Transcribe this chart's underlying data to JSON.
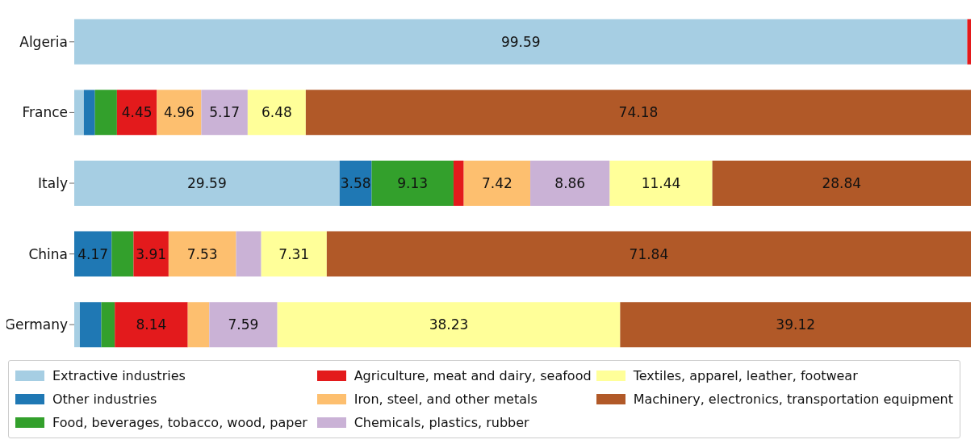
{
  "chart_data": {
    "type": "bar",
    "orientation": "horizontal",
    "stacked": true,
    "categories": [
      "Algeria",
      "France",
      "Italy",
      "China",
      "Germany"
    ],
    "xlim": [
      0,
      100
    ],
    "tick_labels": "y",
    "grid": false,
    "legend": "bottom",
    "series": [
      {
        "name": "Extractive industries",
        "color": "#a6cee3",
        "values": [
          99.59,
          1.07,
          29.59,
          0,
          0.62
        ],
        "value_labels": [
          "99.59",
          null,
          "29.59",
          null,
          null
        ]
      },
      {
        "name": "Other industries",
        "color": "#1f78b4",
        "values": [
          0,
          1.24,
          3.58,
          4.17,
          2.4
        ],
        "value_labels": [
          null,
          null,
          "3.58",
          "4.17",
          null
        ]
      },
      {
        "name": "Food, beverages, tobacco, wood, paper",
        "color": "#33a02c",
        "values": [
          0,
          2.45,
          9.13,
          2.44,
          1.5
        ],
        "value_labels": [
          null,
          null,
          "9.13",
          null,
          null
        ]
      },
      {
        "name": "Agriculture, meat and dairy, seafood",
        "color": "#e31a1c",
        "values": [
          0.41,
          4.45,
          1.14,
          3.91,
          8.14
        ],
        "value_labels": [
          null,
          "4.45",
          null,
          "3.91",
          "8.14"
        ]
      },
      {
        "name": "Iron, steel, and other metals",
        "color": "#fdbf6f",
        "values": [
          0,
          4.96,
          7.42,
          7.53,
          2.4
        ],
        "value_labels": [
          null,
          "4.96",
          "7.42",
          "7.53",
          null
        ]
      },
      {
        "name": "Chemicals, plastics, rubber",
        "color": "#cab2d6",
        "values": [
          0,
          5.17,
          8.86,
          2.8,
          7.59
        ],
        "value_labels": [
          null,
          "5.17",
          "8.86",
          null,
          "7.59"
        ]
      },
      {
        "name": "Textiles, apparel, leather, footwear",
        "color": "#ffff99",
        "values": [
          0,
          6.48,
          11.44,
          7.31,
          38.23
        ],
        "value_labels": [
          null,
          "6.48",
          "11.44",
          "7.31",
          "38.23"
        ]
      },
      {
        "name": "Machinery, electronics, transportation equipment",
        "color": "#b15928",
        "values": [
          0,
          74.18,
          28.84,
          71.84,
          39.12
        ],
        "value_labels": [
          null,
          "74.18",
          "28.84",
          "71.84",
          "39.12"
        ]
      }
    ]
  }
}
